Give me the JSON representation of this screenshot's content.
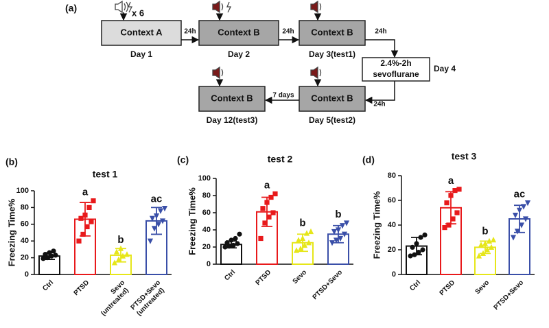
{
  "diagram": {
    "label": "(a)",
    "repeat": "x 6",
    "steps": [
      {
        "box": [
          "Context A"
        ],
        "day": "Day 1"
      },
      {
        "box": [
          "Context B"
        ],
        "day": "Day 2"
      },
      {
        "box": [
          "Context B"
        ],
        "day": "Day 3(test1)"
      },
      {
        "box": [
          "2.4%-2h",
          "sevoflurane"
        ],
        "day": "Day 4"
      },
      {
        "box": [
          "Context B"
        ],
        "day": "Day 5(test2)"
      },
      {
        "box": [
          "Context B"
        ],
        "day": "Day 12(test3)"
      }
    ],
    "intervals": [
      "24h",
      "24h",
      "24h",
      "24h",
      "7 days"
    ]
  },
  "chart_data": [
    {
      "type": "bar",
      "panel": "(b)",
      "title": "test 1",
      "ylabel": "Freezing Time%",
      "categories": [
        [
          "Ctrl"
        ],
        [
          "PTSD"
        ],
        [
          "Sevo",
          "(untreated)"
        ],
        [
          "PTSD+Sevo",
          "(untreated)"
        ]
      ],
      "colors": [
        "#111111",
        "#e8191b",
        "#e6e619",
        "#3a4fa8"
      ],
      "markers": [
        "circle",
        "square",
        "triangle",
        "triangle-down"
      ],
      "values": [
        22,
        66,
        23,
        64
      ],
      "errors": [
        4,
        20,
        8,
        16
      ],
      "points": [
        [
          19,
          20,
          22,
          23,
          24,
          26,
          28
        ],
        [
          40,
          48,
          57,
          63,
          67,
          71,
          80,
          88
        ],
        [
          14,
          18,
          22,
          24,
          27,
          31
        ],
        [
          40,
          55,
          60,
          64,
          67,
          70,
          76,
          79
        ]
      ],
      "annotations": [
        null,
        "a",
        "b",
        "ac"
      ],
      "ylim": [
        0,
        100
      ],
      "yticks": [
        0,
        20,
        40,
        60,
        80,
        100
      ]
    },
    {
      "type": "bar",
      "panel": "(c)",
      "title": "test 2",
      "ylabel": "Freezing Time%",
      "categories": [
        [
          "Ctrl"
        ],
        [
          "PTSD"
        ],
        [
          "Sevo"
        ],
        [
          "PTSD+Sevo"
        ]
      ],
      "colors": [
        "#111111",
        "#e8191b",
        "#e6e619",
        "#3a4fa8"
      ],
      "markers": [
        "circle",
        "square",
        "triangle",
        "triangle-down"
      ],
      "values": [
        23,
        61,
        25,
        35
      ],
      "errors": [
        4,
        17,
        10,
        10
      ],
      "points": [
        [
          20,
          21,
          22,
          24,
          25,
          28,
          30,
          35
        ],
        [
          30,
          48,
          55,
          60,
          65,
          72,
          78,
          82
        ],
        [
          16,
          18,
          22,
          25,
          28,
          30,
          36,
          38
        ],
        [
          25,
          28,
          30,
          35,
          38,
          40,
          45,
          48
        ]
      ],
      "annotations": [
        null,
        "a",
        "b",
        "b"
      ],
      "ylim": [
        0,
        100
      ],
      "yticks": [
        0,
        20,
        40,
        60,
        80,
        100
      ]
    },
    {
      "type": "bar",
      "panel": "(d)",
      "title": "test 3",
      "ylabel": "Freezing Time%",
      "categories": [
        [
          "Ctrl"
        ],
        [
          "PTSD"
        ],
        [
          "Sevo"
        ],
        [
          "PTSD+Sevo"
        ]
      ],
      "colors": [
        "#111111",
        "#e8191b",
        "#e6e619",
        "#3a4fa8"
      ],
      "markers": [
        "circle",
        "square",
        "triangle",
        "triangle-down"
      ],
      "values": [
        23,
        54,
        22,
        45
      ],
      "errors": [
        7,
        13,
        5,
        11
      ],
      "points": [
        [
          15,
          16,
          18,
          20,
          22,
          25,
          30,
          32
        ],
        [
          38,
          40,
          45,
          50,
          58,
          64,
          68,
          69
        ],
        [
          15,
          17,
          20,
          22,
          24,
          25,
          27,
          28
        ],
        [
          30,
          35,
          40,
          45,
          48,
          52,
          55,
          58
        ]
      ],
      "annotations": [
        null,
        "a",
        "b",
        "ac"
      ],
      "ylim": [
        0,
        80
      ],
      "yticks": [
        0,
        20,
        40,
        60,
        80
      ]
    }
  ]
}
